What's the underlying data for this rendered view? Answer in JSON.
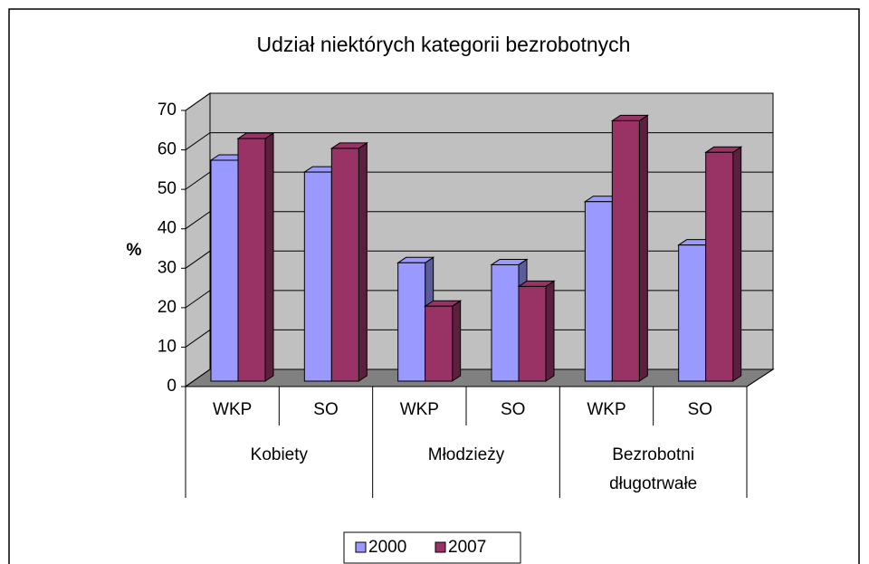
{
  "chart_data": {
    "type": "bar3d",
    "title": "Udział niektórych kategorii bezrobotnych",
    "y_label": "%",
    "categories": [
      "WKP",
      "SO",
      "WKP",
      "SO",
      "WKP",
      "SO"
    ],
    "groups": [
      "Kobiety",
      "Młodzieży",
      "Bezrobotni długotrwałe"
    ],
    "series": [
      {
        "name": "2000",
        "color": "#9999ff",
        "side": "#5c5c99",
        "values": [
          56,
          53,
          30,
          29.5,
          45.5,
          34.5
        ]
      },
      {
        "name": "2007",
        "color": "#993366",
        "side": "#5c1f3d",
        "values": [
          61.5,
          59,
          19,
          24,
          66,
          58
        ]
      }
    ],
    "ylim": [
      0,
      70
    ],
    "yticks": [
      0,
      10,
      20,
      30,
      40,
      50,
      60,
      70
    ],
    "grid": true,
    "legend": "bottom"
  }
}
